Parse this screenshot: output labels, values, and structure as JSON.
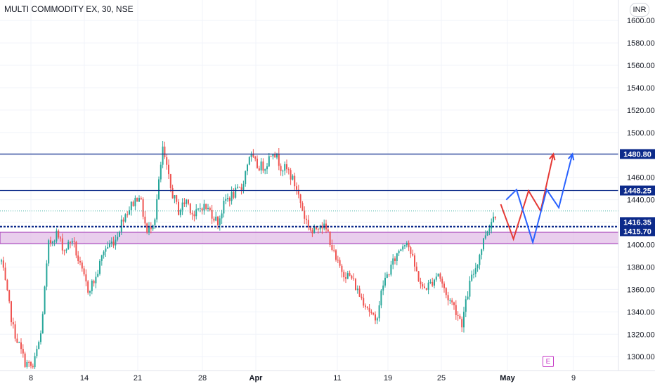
{
  "header": {
    "symbol_title": "MULTI COMMODITY EX, 30, NSE"
  },
  "toolbar": {
    "currency_label": "INR"
  },
  "events_badge": {
    "label": "E"
  },
  "colors": {
    "bull": "#26a69a",
    "bear": "#ef5350",
    "level_line": "#0c2a8a",
    "zone_fill": "#e1bee7",
    "zone_border": "#9c27b0",
    "forecast_red": "#e53935",
    "forecast_blue": "#2962ff",
    "axis_text": "#131722",
    "label_bg": "#0c2a8a"
  },
  "chart_data": {
    "type": "candlestick",
    "title": "MULTI COMMODITY EX, 30, NSE",
    "currency": "INR",
    "ylim": [
      1292,
      1612
    ],
    "x_tick_labels": [
      "8",
      "14",
      "21",
      "28",
      "Apr",
      "11",
      "19",
      "25",
      "May",
      "9"
    ],
    "y_tick_labels": [
      "1600.00",
      "1580.00",
      "1560.00",
      "1540.00",
      "1520.00",
      "1500.00",
      "1480.00",
      "1460.00",
      "1440.00",
      "1420.00",
      "1400.00",
      "1380.00",
      "1360.00",
      "1340.00",
      "1320.00",
      "1300.00"
    ],
    "y_tick_values": [
      1600,
      1580,
      1560,
      1540,
      1520,
      1500,
      1480,
      1460,
      1440,
      1420,
      1400,
      1380,
      1360,
      1340,
      1320,
      1300
    ],
    "horizontal_levels": [
      {
        "label": "1480.80",
        "value": 1480.8
      },
      {
        "label": "1448.25",
        "value": 1448.25
      },
      {
        "label": "1416.35",
        "value": 1416.35
      },
      {
        "label": "1415.70",
        "value": 1415.7
      }
    ],
    "support_zone": [
      1401,
      1411
    ],
    "price_path_anchors": [
      [
        0,
        1385
      ],
      [
        6,
        1325
      ],
      [
        12,
        1295
      ],
      [
        16,
        1290
      ],
      [
        20,
        1320
      ],
      [
        24,
        1400
      ],
      [
        28,
        1410
      ],
      [
        32,
        1395
      ],
      [
        36,
        1405
      ],
      [
        40,
        1380
      ],
      [
        44,
        1360
      ],
      [
        48,
        1370
      ],
      [
        52,
        1395
      ],
      [
        58,
        1405
      ],
      [
        62,
        1425
      ],
      [
        66,
        1435
      ],
      [
        70,
        1445
      ],
      [
        74,
        1410
      ],
      [
        78,
        1425
      ],
      [
        82,
        1485
      ],
      [
        86,
        1450
      ],
      [
        90,
        1430
      ],
      [
        94,
        1440
      ],
      [
        98,
        1425
      ],
      [
        102,
        1435
      ],
      [
        106,
        1430
      ],
      [
        110,
        1420
      ],
      [
        114,
        1440
      ],
      [
        118,
        1445
      ],
      [
        122,
        1450
      ],
      [
        126,
        1480
      ],
      [
        130,
        1470
      ],
      [
        134,
        1470
      ],
      [
        138,
        1485
      ],
      [
        142,
        1470
      ],
      [
        146,
        1465
      ],
      [
        150,
        1450
      ],
      [
        154,
        1425
      ],
      [
        158,
        1410
      ],
      [
        162,
        1420
      ],
      [
        166,
        1410
      ],
      [
        170,
        1385
      ],
      [
        174,
        1375
      ],
      [
        178,
        1370
      ],
      [
        182,
        1355
      ],
      [
        186,
        1345
      ],
      [
        190,
        1330
      ],
      [
        194,
        1365
      ],
      [
        198,
        1380
      ],
      [
        202,
        1395
      ],
      [
        206,
        1405
      ],
      [
        210,
        1380
      ],
      [
        214,
        1360
      ],
      [
        218,
        1365
      ],
      [
        222,
        1375
      ],
      [
        226,
        1355
      ],
      [
        230,
        1345
      ],
      [
        234,
        1330
      ],
      [
        238,
        1365
      ],
      [
        242,
        1385
      ],
      [
        246,
        1410
      ],
      [
        250,
        1425
      ],
      [
        252,
        1430
      ]
    ],
    "forecast_paths": [
      {
        "color": "red",
        "points": [
          [
            1.8,
            1436
          ],
          [
            6.0,
            1405
          ],
          [
            11.0,
            1448
          ],
          [
            15.0,
            1430
          ],
          [
            19.2,
            1480.8
          ]
        ]
      },
      {
        "color": "blue",
        "points": [
          [
            3.6,
            1440
          ],
          [
            7.0,
            1449
          ],
          [
            12.4,
            1402
          ],
          [
            17.0,
            1449
          ],
          [
            21.0,
            1433
          ],
          [
            25.5,
            1480.8
          ]
        ]
      }
    ]
  }
}
